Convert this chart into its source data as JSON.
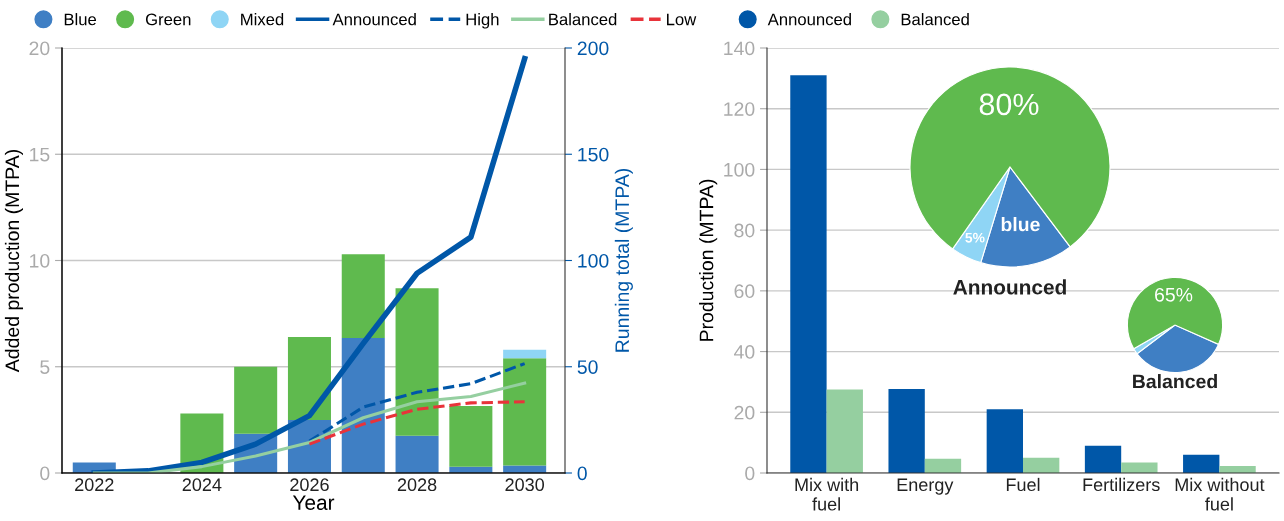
{
  "chart_data": [
    {
      "type": "bar",
      "stacked": true,
      "xlabel": "Year",
      "ylabel": "Added production (MTPA)",
      "y2label": "Running total (MTPA)",
      "x": [
        2022,
        2023,
        2024,
        2025,
        2026,
        2027,
        2028,
        2029,
        2030
      ],
      "xlim": [
        2021.4,
        2030.75
      ],
      "xticks": [
        2022,
        2024,
        2026,
        2028,
        2030
      ],
      "ylim": [
        0,
        20
      ],
      "yticks": [
        0,
        5,
        10,
        15,
        20
      ],
      "y2lim": [
        0,
        200
      ],
      "y2ticks": [
        0,
        50,
        100,
        150,
        200
      ],
      "grid": "y",
      "legend": "top",
      "series": [
        {
          "name": "Blue",
          "color": "#3f7fc4",
          "values": [
            0.5,
            0,
            null,
            1.85,
            2.5,
            6.35,
            1.75,
            0.3,
            0.35
          ]
        },
        {
          "name": "Green",
          "color": "#5fba4e",
          "values": [
            0,
            0,
            2.8,
            3.15,
            3.9,
            3.95,
            6.95,
            2.85,
            5.05
          ]
        },
        {
          "name": "Mixed",
          "color": "#8fd5f5",
          "values": [
            0,
            0,
            0,
            0,
            0,
            0,
            0,
            0,
            0.4
          ]
        },
        {
          "name": "Announced",
          "type": "line",
          "axis": "y2",
          "color": "#0057a8",
          "line_style": "solid",
          "values": [
            0,
            1,
            5,
            13.6,
            27,
            61,
            94,
            111,
            195
          ]
        },
        {
          "name": "High",
          "type": "line",
          "axis": "y2",
          "color": "#0057a8",
          "line_style": "dashed",
          "values": [
            null,
            null,
            null,
            null,
            15,
            31,
            38,
            42,
            51.5
          ]
        },
        {
          "name": "Balanced",
          "type": "line",
          "axis": "y2",
          "color": "#95cfa0",
          "line_style": "solid",
          "values": [
            0,
            0,
            3,
            8,
            14.4,
            26,
            33.5,
            36,
            42.3
          ]
        },
        {
          "name": "Low",
          "type": "line",
          "axis": "y2",
          "color": "#e8333a",
          "line_style": "dashed",
          "values": [
            null,
            null,
            null,
            null,
            13.6,
            23,
            30,
            33,
            33.5
          ]
        }
      ]
    },
    {
      "type": "bar",
      "ylabel": "Production (MTPA)",
      "categories": [
        "Mix with\nfuel",
        "Energy",
        "Fuel",
        "Fertilizers",
        "Mix without\nfuel"
      ],
      "ylim": [
        0,
        140
      ],
      "yticks": [
        0,
        20,
        40,
        60,
        80,
        100,
        120,
        140
      ],
      "grid": "y",
      "legend": "top",
      "series": [
        {
          "name": "Announced",
          "color": "#0057a8",
          "values": [
            131,
            27.7,
            21,
            9,
            6
          ]
        },
        {
          "name": "Balanced",
          "color": "#95cfa0",
          "values": [
            27.5,
            4.7,
            5,
            3.5,
            2.3
          ]
        }
      ]
    },
    {
      "type": "pie",
      "title": "Announced",
      "categories": [
        null,
        null,
        null
      ],
      "values": [
        15,
        5,
        80
      ],
      "colors": [
        "#3f7fc4",
        "#8fd5f5",
        "#5fba4e"
      ],
      "value_labels": [
        "blue",
        "5%",
        "80%"
      ]
    },
    {
      "type": "pie",
      "title": "Balanced",
      "categories": [
        null,
        null,
        null
      ],
      "values": [
        33,
        2,
        65
      ],
      "colors": [
        "#3f7fc4",
        "#8fd5f5",
        "#5fba4e"
      ],
      "value_labels": [
        null,
        null,
        "65%"
      ]
    }
  ]
}
